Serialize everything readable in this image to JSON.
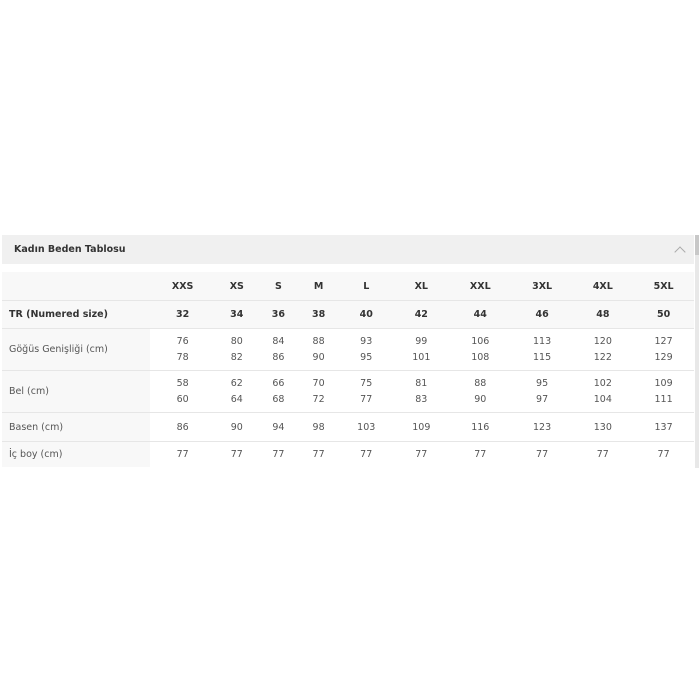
{
  "title": "Kadın Beden Tablosu",
  "sizes": [
    "XXS",
    "XS",
    "S",
    "M",
    "L",
    "XL",
    "XXL",
    "3XL",
    "4XL",
    "5XL"
  ],
  "rows": [
    {
      "label": "TR (Numered size)",
      "values": [
        [
          "32"
        ],
        [
          "34"
        ],
        [
          "36"
        ],
        [
          "38"
        ],
        [
          "40"
        ],
        [
          "42"
        ],
        [
          "44"
        ],
        [
          "46"
        ],
        [
          "48"
        ],
        [
          "50"
        ]
      ]
    },
    {
      "label": "Göğüs Genişliği (cm)",
      "values": [
        [
          "76",
          "78"
        ],
        [
          "80",
          "82"
        ],
        [
          "84",
          "86"
        ],
        [
          "88",
          "90"
        ],
        [
          "93",
          "95"
        ],
        [
          "99",
          "101"
        ],
        [
          "106",
          "108"
        ],
        [
          "113",
          "115"
        ],
        [
          "120",
          "122"
        ],
        [
          "127",
          "129"
        ]
      ]
    },
    {
      "label": "Bel (cm)",
      "values": [
        [
          "58",
          "60"
        ],
        [
          "62",
          "64"
        ],
        [
          "66",
          "68"
        ],
        [
          "70",
          "72"
        ],
        [
          "75",
          "77"
        ],
        [
          "81",
          "83"
        ],
        [
          "88",
          "90"
        ],
        [
          "95",
          "97"
        ],
        [
          "102",
          "104"
        ],
        [
          "109",
          "111"
        ]
      ]
    },
    {
      "label": "Basen (cm)",
      "values": [
        [
          "86"
        ],
        [
          "90"
        ],
        [
          "94"
        ],
        [
          "98"
        ],
        [
          "103"
        ],
        [
          "109"
        ],
        [
          "116"
        ],
        [
          "123"
        ],
        [
          "130"
        ],
        [
          "137"
        ]
      ]
    },
    {
      "label": "İç boy (cm)",
      "values": [
        [
          "77"
        ],
        [
          "77"
        ],
        [
          "77"
        ],
        [
          "77"
        ],
        [
          "77"
        ],
        [
          "77"
        ],
        [
          "77"
        ],
        [
          "77"
        ],
        [
          "77"
        ],
        [
          "77"
        ]
      ]
    }
  ],
  "icons": {
    "collapse": "chevron-up-icon"
  }
}
